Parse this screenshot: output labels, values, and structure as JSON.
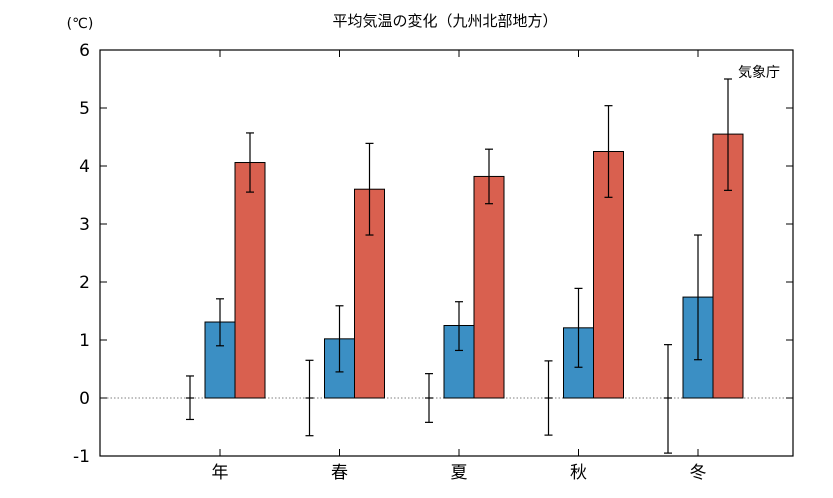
{
  "chart_data": {
    "type": "bar",
    "title": "平均気温の変化（九州北部地方）",
    "ylabel": "(℃)",
    "xlabel": "",
    "annotation": "気象庁",
    "categories": [
      "年",
      "春",
      "夏",
      "秋",
      "冬"
    ],
    "ylim": [
      -1,
      6
    ],
    "yticks": [
      -1,
      0,
      1,
      2,
      3,
      4,
      5,
      6
    ],
    "zero_line": "dotted",
    "series": [
      {
        "color": "#ffffff",
        "style": "error-bar-only",
        "values": [
          0,
          0,
          0,
          0,
          0
        ],
        "err_low": [
          -0.37,
          -0.65,
          -0.42,
          -0.64,
          -0.95
        ],
        "err_high": [
          0.38,
          0.65,
          0.42,
          0.64,
          0.92
        ]
      },
      {
        "color": "#3b8fc4",
        "values": [
          1.31,
          1.02,
          1.25,
          1.21,
          1.74
        ],
        "err_low": [
          0.9,
          0.45,
          0.82,
          0.53,
          0.66
        ],
        "err_high": [
          1.71,
          1.59,
          1.66,
          1.89,
          2.81
        ]
      },
      {
        "color": "#d9604f",
        "values": [
          4.06,
          3.6,
          3.82,
          4.25,
          4.55
        ],
        "err_low": [
          3.55,
          2.81,
          3.35,
          3.46,
          3.58
        ],
        "err_high": [
          4.57,
          4.39,
          4.29,
          5.04,
          5.5
        ]
      }
    ]
  }
}
